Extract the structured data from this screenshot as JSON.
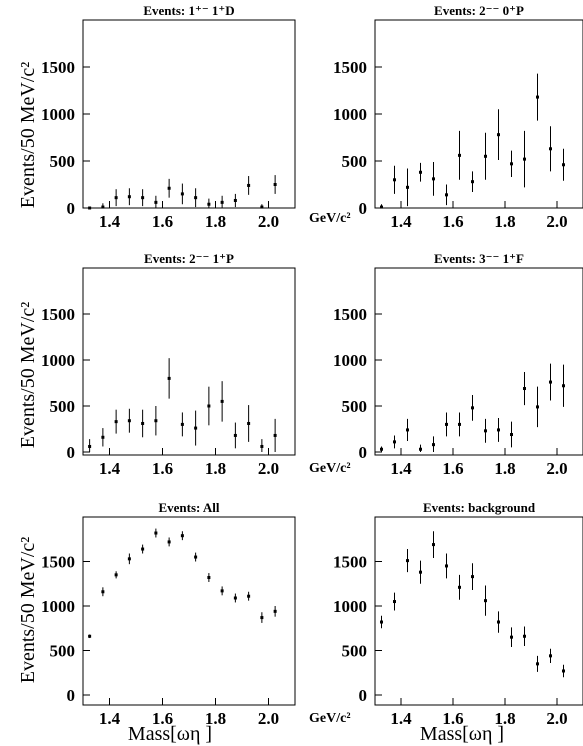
{
  "figure": {
    "ylabel": "Events/50 MeV/c²",
    "x_unit": "GeV/c²",
    "xlabel": "Mass[ωη ]"
  },
  "chart_data": [
    {
      "type": "scatter",
      "title": "Events: 1⁺⁻ 1⁺D",
      "xlim": [
        1.3,
        2.1
      ],
      "ylim": [
        0,
        2000
      ],
      "xticks": [
        "1.4",
        "1.6",
        "1.8",
        "2.0"
      ],
      "yticks": [
        "0",
        "500",
        "1000",
        "1500"
      ],
      "x": [
        1.325,
        1.375,
        1.425,
        1.475,
        1.525,
        1.575,
        1.625,
        1.675,
        1.725,
        1.775,
        1.825,
        1.875,
        1.925,
        1.975,
        2.025
      ],
      "values": [
        0,
        10,
        110,
        120,
        110,
        60,
        210,
        150,
        110,
        40,
        60,
        80,
        240,
        10,
        250
      ],
      "errors": [
        10,
        40,
        90,
        90,
        90,
        70,
        100,
        110,
        100,
        60,
        70,
        70,
        100,
        30,
        100
      ]
    },
    {
      "type": "scatter",
      "title": "Events: 2⁻⁻ 0⁺P",
      "xlim": [
        1.3,
        2.1
      ],
      "ylim": [
        0,
        2000
      ],
      "xticks": [
        "1.4",
        "1.6",
        "1.8",
        "2.0"
      ],
      "yticks": [
        "0",
        "500",
        "1000",
        "1500"
      ],
      "x": [
        1.325,
        1.375,
        1.425,
        1.475,
        1.525,
        1.575,
        1.625,
        1.675,
        1.725,
        1.775,
        1.825,
        1.875,
        1.925,
        1.975,
        2.025
      ],
      "values": [
        10,
        300,
        220,
        380,
        310,
        140,
        560,
        280,
        550,
        780,
        470,
        520,
        1180,
        630,
        460
      ],
      "errors": [
        30,
        150,
        200,
        100,
        180,
        110,
        260,
        110,
        250,
        270,
        140,
        300,
        250,
        240,
        170
      ]
    },
    {
      "type": "scatter",
      "title": "Events: 2⁻⁻ 1⁺P",
      "xlim": [
        1.3,
        2.1
      ],
      "ylim": [
        0,
        2000
      ],
      "xticks": [
        "1.4",
        "1.6",
        "1.8",
        "2.0"
      ],
      "yticks": [
        "0",
        "500",
        "1000",
        "1500"
      ],
      "x": [
        1.325,
        1.375,
        1.425,
        1.475,
        1.525,
        1.575,
        1.625,
        1.675,
        1.725,
        1.775,
        1.825,
        1.875,
        1.925,
        1.975,
        2.025
      ],
      "values": [
        60,
        160,
        330,
        340,
        310,
        340,
        800,
        300,
        260,
        500,
        550,
        180,
        310,
        60,
        180
      ],
      "errors": [
        80,
        100,
        130,
        130,
        150,
        160,
        220,
        130,
        190,
        210,
        220,
        140,
        200,
        80,
        180
      ]
    },
    {
      "type": "scatter",
      "title": "Events: 3⁻⁻ 1⁺F",
      "xlim": [
        1.3,
        2.1
      ],
      "ylim": [
        0,
        2000
      ],
      "xticks": [
        "1.4",
        "1.6",
        "1.8",
        "2.0"
      ],
      "yticks": [
        "0",
        "500",
        "1000",
        "1500"
      ],
      "x": [
        1.325,
        1.375,
        1.425,
        1.475,
        1.525,
        1.575,
        1.625,
        1.675,
        1.725,
        1.775,
        1.825,
        1.875,
        1.925,
        1.975,
        2.025
      ],
      "values": [
        30,
        110,
        240,
        30,
        80,
        300,
        300,
        480,
        230,
        240,
        190,
        690,
        490,
        760,
        720
      ],
      "errors": [
        30,
        70,
        120,
        50,
        90,
        130,
        130,
        140,
        130,
        130,
        140,
        180,
        220,
        200,
        230
      ]
    },
    {
      "type": "scatter",
      "title": "Events: All",
      "xlim": [
        1.3,
        2.1
      ],
      "ylim": [
        0,
        2000
      ],
      "xticks": [
        "1.4",
        "1.6",
        "1.8",
        "2.0"
      ],
      "yticks": [
        "0",
        "500",
        "1000",
        "1500"
      ],
      "x": [
        1.325,
        1.375,
        1.425,
        1.475,
        1.525,
        1.575,
        1.625,
        1.675,
        1.725,
        1.775,
        1.825,
        1.875,
        1.925,
        1.975,
        2.025
      ],
      "values": [
        660,
        1160,
        1350,
        1530,
        1640,
        1820,
        1720,
        1790,
        1550,
        1320,
        1170,
        1090,
        1110,
        870,
        940
      ],
      "errors": [
        20,
        50,
        40,
        60,
        50,
        50,
        50,
        50,
        50,
        50,
        50,
        50,
        50,
        60,
        60
      ]
    },
    {
      "type": "scatter",
      "title": "Events: background",
      "xlim": [
        1.3,
        2.1
      ],
      "ylim": [
        0,
        2000
      ],
      "xticks": [
        "1.4",
        "1.6",
        "1.8",
        "2.0"
      ],
      "yticks": [
        "0",
        "500",
        "1000",
        "1500"
      ],
      "x": [
        1.325,
        1.375,
        1.425,
        1.475,
        1.525,
        1.575,
        1.625,
        1.675,
        1.725,
        1.775,
        1.825,
        1.875,
        1.925,
        1.975,
        2.025
      ],
      "values": [
        820,
        1050,
        1510,
        1380,
        1690,
        1450,
        1210,
        1330,
        1060,
        820,
        650,
        660,
        350,
        440,
        270
      ],
      "errors": [
        70,
        100,
        130,
        130,
        150,
        140,
        140,
        150,
        170,
        120,
        110,
        110,
        90,
        80,
        70
      ]
    }
  ]
}
